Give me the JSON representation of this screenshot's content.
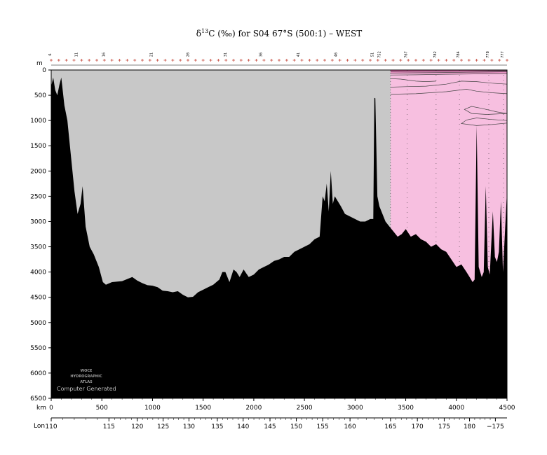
{
  "chart_data": {
    "type": "area",
    "title_prefix": "δ",
    "title_sup": "13",
    "title_rest": "C (‰) for S04 67°S (500:1) – WEST",
    "ylabel": "m",
    "xlabel": "km",
    "lon_label": "Lon",
    "ylim": [
      6500,
      0
    ],
    "xlim": [
      0,
      4500
    ],
    "y_ticks": [
      0,
      500,
      1000,
      1500,
      2000,
      2500,
      3000,
      3500,
      4000,
      4500,
      5000,
      5500,
      6000,
      6500
    ],
    "x_ticks": [
      0,
      500,
      1000,
      1500,
      2000,
      2500,
      3000,
      3500,
      4000,
      4500
    ],
    "lon_ticks": [
      {
        "label": "110",
        "km": 0
      },
      {
        "label": "115",
        "km": 570
      },
      {
        "label": "120",
        "km": 850
      },
      {
        "label": "125",
        "km": 1105
      },
      {
        "label": "130",
        "km": 1360
      },
      {
        "label": "135",
        "km": 1640
      },
      {
        "label": "140",
        "km": 1895
      },
      {
        "label": "145",
        "km": 2160
      },
      {
        "label": "150",
        "km": 2420
      },
      {
        "label": "155",
        "km": 2680
      },
      {
        "label": "160",
        "km": 2950
      },
      {
        "label": "165",
        "km": 3350
      },
      {
        "label": "170",
        "km": 3615
      },
      {
        "label": "175",
        "km": 3880
      },
      {
        "label": "180",
        "km": 4130
      },
      {
        "label": "−175",
        "km": 4385
      }
    ],
    "station_labels": [
      {
        "label": "6",
        "km": 0
      },
      {
        "label": "11",
        "km": 260
      },
      {
        "label": "16",
        "km": 530
      },
      {
        "label": "21",
        "km": 1000
      },
      {
        "label": "26",
        "km": 1360
      },
      {
        "label": "31",
        "km": 1730
      },
      {
        "label": "36",
        "km": 2080
      },
      {
        "label": "41",
        "km": 2450
      },
      {
        "label": "46",
        "km": 2820
      },
      {
        "label": "51",
        "km": 3180
      },
      {
        "label": "752",
        "km": 3250
      },
      {
        "label": "767",
        "km": 3515
      },
      {
        "label": "782",
        "km": 3800
      },
      {
        "label": "784",
        "km": 4030
      },
      {
        "label": "778",
        "km": 4320
      },
      {
        "label": "777",
        "km": 4465
      }
    ],
    "data_region_km": [
      3350,
      4500
    ],
    "bathymetry": {
      "km": [
        0,
        20,
        40,
        60,
        80,
        100,
        130,
        160,
        190,
        230,
        260,
        290,
        310,
        340,
        380,
        420,
        470,
        510,
        540,
        600,
        700,
        800,
        850,
        900,
        950,
        1000,
        1050,
        1100,
        1150,
        1200,
        1250,
        1300,
        1350,
        1400,
        1450,
        1500,
        1550,
        1600,
        1660,
        1690,
        1720,
        1760,
        1800,
        1830,
        1860,
        1900,
        1950,
        2000,
        2050,
        2100,
        2150,
        2200,
        2250,
        2300,
        2350,
        2400,
        2450,
        2500,
        2550,
        2600,
        2650,
        2680,
        2700,
        2720,
        2740,
        2760,
        2780,
        2800,
        2830,
        2860,
        2900,
        2950,
        3000,
        3050,
        3100,
        3150,
        3180,
        3190,
        3200,
        3220,
        3240,
        3260,
        3280,
        3300,
        3340,
        3380,
        3420,
        3460,
        3500,
        3550,
        3600,
        3650,
        3700,
        3750,
        3800,
        3850,
        3900,
        3950,
        4000,
        4050,
        4100,
        4130,
        4160,
        4180,
        4200,
        4220,
        4250,
        4270,
        4290,
        4310,
        4330,
        4360,
        4380,
        4400,
        4420,
        4440,
        4460,
        4480,
        4500
      ],
      "depth_m": [
        320,
        150,
        400,
        500,
        300,
        150,
        700,
        1000,
        1600,
        2400,
        2850,
        2650,
        2300,
        3100,
        3500,
        3650,
        3900,
        4200,
        4250,
        4200,
        4180,
        4100,
        4170,
        4220,
        4260,
        4270,
        4300,
        4370,
        4380,
        4400,
        4380,
        4450,
        4500,
        4490,
        4400,
        4350,
        4300,
        4250,
        4150,
        4000,
        4000,
        4200,
        3950,
        4000,
        4100,
        3950,
        4100,
        4050,
        3950,
        3900,
        3850,
        3780,
        3750,
        3700,
        3700,
        3600,
        3550,
        3500,
        3450,
        3350,
        3300,
        2500,
        2600,
        2250,
        2800,
        2000,
        2650,
        2500,
        2600,
        2700,
        2850,
        2900,
        2950,
        3000,
        3000,
        2950,
        2950,
        550,
        560,
        2500,
        2700,
        2800,
        2900,
        3000,
        3100,
        3200,
        3300,
        3250,
        3150,
        3300,
        3250,
        3350,
        3400,
        3500,
        3450,
        3550,
        3600,
        3750,
        3900,
        3850,
        4000,
        4100,
        4200,
        4150,
        1100,
        3900,
        4100,
        4000,
        2300,
        3900,
        4050,
        2800,
        3700,
        3800,
        3600,
        2600,
        4000,
        3200,
        2400
      ]
    },
    "contours": [
      {
        "km": [
          3350,
          3600,
          3900,
          4100,
          4300,
          4500
        ],
        "depth_m": [
          30,
          25,
          20,
          18,
          15,
          12
        ]
      },
      {
        "km": [
          3350,
          3600,
          3900,
          4100,
          4300,
          4500
        ],
        "depth_m": [
          60,
          55,
          50,
          45,
          40,
          35
        ]
      },
      {
        "km": [
          3350,
          3600,
          3900,
          4100,
          4300,
          4500
        ],
        "depth_m": [
          100,
          95,
          85,
          80,
          75,
          70
        ]
      },
      {
        "km": [
          3350,
          3450,
          3600,
          3700,
          3800
        ],
        "depth_m": [
          170,
          180,
          220,
          230,
          220
        ]
      },
      {
        "km": [
          3350,
          3500,
          3700,
          3900,
          4050,
          4200,
          4350,
          4500
        ],
        "depth_m": [
          340,
          330,
          320,
          280,
          220,
          230,
          260,
          280
        ]
      },
      {
        "km": [
          3350,
          3600,
          3900,
          4100,
          4200,
          4350,
          4500
        ],
        "depth_m": [
          480,
          470,
          430,
          380,
          420,
          450,
          470
        ]
      },
      {
        "km": [
          4500,
          4400,
          4250,
          4150,
          4080,
          4150,
          4300,
          4500
        ],
        "depth_m": [
          860,
          830,
          760,
          720,
          780,
          860,
          880,
          860
        ]
      },
      {
        "km": [
          4500,
          4350,
          4200,
          4100,
          4050,
          4200,
          4350,
          4500
        ],
        "depth_m": [
          1000,
          980,
          950,
          990,
          1060,
          1100,
          1080,
          1050
        ]
      }
    ],
    "colors": {
      "land_fill": "#000000",
      "nodata_fill": "#c8c8c8",
      "data_fill": "#f7bfe0",
      "surface_band": "#c8408c",
      "contour": "#444444",
      "station_cross": "#c0392b"
    },
    "watermark": [
      "WOCE",
      "HYDROGRAPHIC",
      "ATLAS",
      "Computer Generated"
    ]
  }
}
